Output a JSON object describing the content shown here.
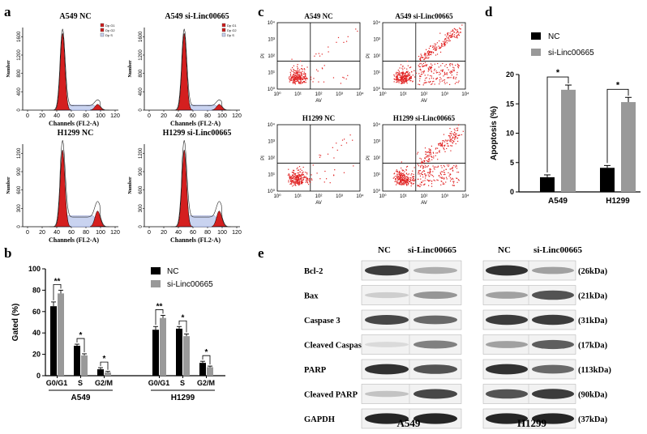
{
  "panels": {
    "a": {
      "letter": "a",
      "hist": [
        {
          "title": "A549 NC",
          "yticks": [
            "0",
            "400",
            "800",
            "1200",
            "1600"
          ],
          "ylabel": "Number",
          "xlabel": "Channels (FL2-A)",
          "xticks": [
            "0",
            "20",
            "40",
            "60",
            "80",
            "100",
            "120"
          ],
          "legend": [
            "Dp G1",
            "Dp G2",
            "Dp S"
          ]
        },
        {
          "title": "A549 si-Linc00665",
          "yticks": [
            "0",
            "400",
            "800",
            "1200",
            "1600"
          ],
          "ylabel": "Number",
          "xlabel": "Channels (FL2-A)",
          "xticks": [
            "0",
            "20",
            "40",
            "60",
            "80",
            "100",
            "120"
          ],
          "legend": [
            "Dp G1",
            "Dp G2",
            "Dp S"
          ]
        },
        {
          "title": "H1299 NC",
          "yticks": [
            "0",
            "300",
            "600",
            "900",
            "1200"
          ],
          "ylabel": "Number",
          "xlabel": "Channels (FL2-A)",
          "xticks": [
            "0",
            "20",
            "40",
            "60",
            "80",
            "100",
            "120"
          ]
        },
        {
          "title": "H1299 si-Linc00665",
          "yticks": [
            "0",
            "300",
            "600",
            "900",
            "1200"
          ],
          "ylabel": "Number",
          "xlabel": "Channels (FL2-A)",
          "xticks": [
            "0",
            "20",
            "40",
            "60",
            "80",
            "100",
            "120"
          ]
        }
      ]
    },
    "c": {
      "letter": "c",
      "plots": [
        {
          "title": "A549 NC"
        },
        {
          "title": "A549 si-Linc00665"
        },
        {
          "title": "H1299 NC"
        },
        {
          "title": "H1299 si-Linc00665"
        }
      ],
      "xlabel": "AV",
      "ylabel": "PI",
      "ticks": [
        "10⁰",
        "10¹",
        "10²",
        "10³",
        "10⁴"
      ]
    },
    "d": {
      "letter": "d"
    },
    "b": {
      "letter": "b"
    },
    "e": {
      "letter": "e",
      "col_labels_a549": [
        "NC",
        "si-Linc00665"
      ],
      "col_labels_h1299": [
        "NC",
        "si-Linc00665"
      ],
      "rows": [
        {
          "label": "Bcl-2",
          "kda": "(26kDa)"
        },
        {
          "label": "Bax",
          "kda": "(21kDa)"
        },
        {
          "label": "Caspase 3",
          "kda": "(31kDa)"
        },
        {
          "label": "Cleaved Caspase 3",
          "kda": "(17kDa)"
        },
        {
          "label": "PARP",
          "kda": "(113kDa)"
        },
        {
          "label": "Cleaved PARP",
          "kda": "(90kDa)"
        },
        {
          "label": "GAPDH",
          "kda": "(37kDa)"
        }
      ],
      "band_intensity_a549": [
        [
          0.8,
          0.3
        ],
        [
          0.15,
          0.4
        ],
        [
          0.75,
          0.6
        ],
        [
          0.1,
          0.5
        ],
        [
          0.85,
          0.7
        ],
        [
          0.2,
          0.75
        ],
        [
          0.9,
          0.9
        ]
      ],
      "band_intensity_h1299": [
        [
          0.85,
          0.35
        ],
        [
          0.35,
          0.7
        ],
        [
          0.8,
          0.8
        ],
        [
          0.35,
          0.65
        ],
        [
          0.85,
          0.6
        ],
        [
          0.7,
          0.8
        ],
        [
          0.9,
          0.9
        ]
      ],
      "footer_a549": "A549",
      "footer_h1299": "H1299"
    }
  },
  "chart_data": [
    {
      "type": "bar",
      "panel": "d",
      "categories": [
        "A549",
        "H1299"
      ],
      "series": [
        {
          "name": "NC",
          "values": [
            2.5,
            4.1
          ],
          "errors": [
            0.4,
            0.4
          ],
          "color": "#000000"
        },
        {
          "name": "si-Linc00665",
          "values": [
            17.4,
            15.3
          ],
          "errors": [
            0.8,
            0.8
          ],
          "color": "#999999"
        }
      ],
      "ylabel": "Apoptosis (%)",
      "ylim": [
        0,
        20
      ],
      "yticks": [
        0,
        5,
        10,
        15,
        20
      ],
      "significance": [
        "*",
        "*"
      ],
      "legend_position": "top"
    },
    {
      "type": "bar",
      "panel": "b",
      "groups": [
        {
          "name": "A549",
          "categories": [
            "G0/G1",
            "S",
            "G2/M"
          ],
          "NC": [
            65,
            28,
            6
          ],
          "si": [
            77,
            19,
            3
          ],
          "NC_err": [
            4,
            1.5,
            1.5
          ],
          "si_err": [
            3,
            1.5,
            1
          ],
          "significance": [
            "**",
            "*",
            "*"
          ]
        },
        {
          "name": "H1299",
          "categories": [
            "G0/G1",
            "S",
            "G2/M"
          ],
          "NC": [
            43,
            44,
            12
          ],
          "si": [
            54,
            37,
            8
          ],
          "NC_err": [
            3,
            2,
            1.5
          ],
          "si_err": [
            2.5,
            2,
            1
          ],
          "significance": [
            "**",
            "*",
            "*"
          ]
        }
      ],
      "series_names": [
        "NC",
        "si-Linc00665"
      ],
      "colors": [
        "#000000",
        "#999999"
      ],
      "ylabel": "Gated (%)",
      "ylim": [
        0,
        100
      ],
      "yticks": [
        0,
        20,
        40,
        60,
        80,
        100
      ],
      "legend_position": "top-right"
    }
  ]
}
